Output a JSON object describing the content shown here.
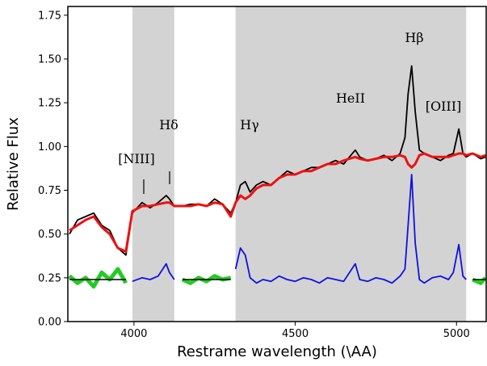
{
  "chart_data": {
    "type": "line",
    "x_label": "Restrame wavelength (\\AA)",
    "y_label": "Relative Flux",
    "xlim": [
      3795,
      5092
    ],
    "ylim": [
      0,
      1.8
    ],
    "xticks": [
      4000,
      4500,
      5000
    ],
    "yticks": [
      {
        "value": 0,
        "label": "0.00"
      },
      {
        "value": 0.25,
        "label": "0.25"
      },
      {
        "value": 0.5,
        "label": "0.50"
      },
      {
        "value": 0.75,
        "label": "0.75"
      },
      {
        "value": 1.0,
        "label": "1.00"
      },
      {
        "value": 1.25,
        "label": "1.25"
      },
      {
        "value": 1.5,
        "label": "1.50"
      },
      {
        "value": 1.75,
        "label": "1.75"
      }
    ],
    "shaded_regions": [
      [
        3995,
        4125
      ],
      [
        4315,
        5030
      ]
    ],
    "shade_color": "#d3d3d3",
    "annotations": [
      "[NIII]",
      "Hδ",
      "Hγ",
      "HeII",
      "Hβ",
      "[OIII]"
    ],
    "x": [
      3800,
      3825,
      3850,
      3875,
      3900,
      3925,
      3950,
      3975,
      3995,
      4025,
      4050,
      4075,
      4100,
      4110,
      4125,
      4150,
      4175,
      4200,
      4225,
      4250,
      4275,
      4300,
      4315,
      4330,
      4345,
      4360,
      4380,
      4400,
      4425,
      4450,
      4475,
      4500,
      4525,
      4550,
      4575,
      4600,
      4625,
      4650,
      4686,
      4700,
      4725,
      4750,
      4775,
      4800,
      4825,
      4840,
      4850,
      4861,
      4872,
      4885,
      4900,
      4925,
      4950,
      4975,
      4990,
      5007,
      5020,
      5030,
      5050,
      5075,
      5090
    ],
    "series": [
      {
        "color": "#000000",
        "width": 1.8,
        "values": [
          0.5,
          0.58,
          0.6,
          0.62,
          0.55,
          0.52,
          0.42,
          0.38,
          0.62,
          0.68,
          0.65,
          0.68,
          0.72,
          0.7,
          0.66,
          0.66,
          0.67,
          0.67,
          0.66,
          0.7,
          0.67,
          0.62,
          0.68,
          0.78,
          0.8,
          0.74,
          0.78,
          0.8,
          0.78,
          0.82,
          0.86,
          0.84,
          0.86,
          0.88,
          0.88,
          0.9,
          0.92,
          0.9,
          0.98,
          0.94,
          0.92,
          0.93,
          0.95,
          0.92,
          0.96,
          1.05,
          1.3,
          1.46,
          1.2,
          0.98,
          0.96,
          0.94,
          0.92,
          0.95,
          0.96,
          1.1,
          0.96,
          0.94,
          0.96,
          0.93,
          0.94
        ]
      },
      {
        "color": "#ee1111",
        "width": 3,
        "values": [
          0.52,
          0.55,
          0.58,
          0.6,
          0.54,
          0.5,
          0.42,
          0.4,
          0.63,
          0.66,
          0.66,
          0.67,
          0.68,
          0.68,
          0.66,
          0.66,
          0.66,
          0.67,
          0.66,
          0.68,
          0.67,
          0.6,
          0.68,
          0.72,
          0.7,
          0.72,
          0.76,
          0.78,
          0.78,
          0.82,
          0.84,
          0.84,
          0.86,
          0.86,
          0.88,
          0.9,
          0.9,
          0.92,
          0.94,
          0.93,
          0.92,
          0.93,
          0.94,
          0.94,
          0.95,
          0.94,
          0.9,
          0.88,
          0.9,
          0.95,
          0.96,
          0.94,
          0.94,
          0.94,
          0.95,
          0.96,
          0.96,
          0.95,
          0.96,
          0.94,
          0.95
        ]
      },
      {
        "color": "#1010e0",
        "width": 1.8,
        "values": [
          null,
          null,
          null,
          null,
          null,
          null,
          null,
          null,
          0.23,
          0.25,
          0.24,
          0.26,
          0.33,
          0.28,
          0.24,
          null,
          null,
          null,
          null,
          null,
          null,
          null,
          0.3,
          0.42,
          0.38,
          0.25,
          0.22,
          0.24,
          0.23,
          0.26,
          0.24,
          0.23,
          0.25,
          0.24,
          0.22,
          0.25,
          0.24,
          0.23,
          0.33,
          0.24,
          0.23,
          0.25,
          0.24,
          0.22,
          0.26,
          0.3,
          0.55,
          0.84,
          0.45,
          0.24,
          0.22,
          0.25,
          0.26,
          0.24,
          0.28,
          0.44,
          0.26,
          0.24,
          null,
          null,
          null
        ]
      },
      {
        "color": "#22cc22",
        "width": 5,
        "values": [
          0.26,
          0.22,
          0.25,
          0.2,
          0.28,
          0.24,
          0.3,
          0.22,
          null,
          null,
          null,
          null,
          null,
          null,
          null,
          0.24,
          0.22,
          0.25,
          0.23,
          0.26,
          0.24,
          0.25,
          null,
          null,
          null,
          null,
          null,
          null,
          null,
          null,
          null,
          null,
          null,
          null,
          null,
          null,
          null,
          null,
          null,
          null,
          null,
          null,
          null,
          null,
          null,
          null,
          null,
          null,
          null,
          null,
          null,
          null,
          null,
          null,
          null,
          null,
          null,
          null,
          0.24,
          0.22,
          0.25
        ]
      },
      {
        "color": "#000000",
        "width": 1.6,
        "values": [
          0.24,
          0.24,
          0.24,
          0.24,
          0.24,
          0.24,
          0.24,
          0.24,
          null,
          null,
          null,
          null,
          null,
          null,
          null,
          0.24,
          0.24,
          0.24,
          0.24,
          0.24,
          0.24,
          0.24,
          null,
          null,
          null,
          null,
          null,
          null,
          null,
          null,
          null,
          null,
          null,
          null,
          null,
          null,
          null,
          null,
          null,
          null,
          null,
          null,
          null,
          null,
          null,
          null,
          null,
          null,
          null,
          null,
          null,
          null,
          null,
          null,
          null,
          null,
          null,
          null,
          0.24,
          0.24,
          0.24
        ]
      }
    ]
  }
}
